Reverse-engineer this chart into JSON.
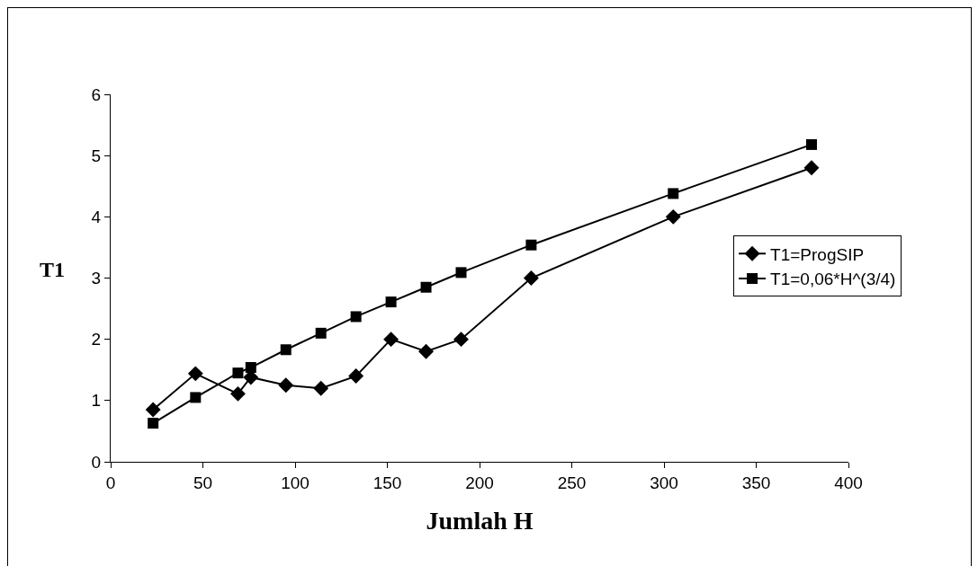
{
  "chart_data": {
    "type": "line",
    "xlabel": "Jumlah H",
    "ylabel": "T1",
    "x": [
      23,
      46,
      69,
      76,
      95,
      114,
      133,
      152,
      171,
      190,
      228,
      305,
      380
    ],
    "series": [
      {
        "name": "T1=ProgSIP",
        "color": "#000000",
        "marker": "diamond",
        "values": [
          0.85,
          1.44,
          1.11,
          1.38,
          1.25,
          1.2,
          1.4,
          2.0,
          1.8,
          2.0,
          3.0,
          4.0,
          4.8
        ]
      },
      {
        "name": "T1=0,06*H^(3/4)",
        "color": "#000000",
        "marker": "square",
        "values": [
          0.63,
          1.05,
          1.45,
          1.54,
          1.83,
          2.1,
          2.37,
          2.61,
          2.85,
          3.09,
          3.54,
          4.38,
          5.18
        ]
      }
    ],
    "xlim": [
      0,
      400
    ],
    "xticks": [
      0,
      50,
      100,
      150,
      200,
      250,
      300,
      350,
      400
    ],
    "ylim": [
      0,
      6
    ],
    "yticks": [
      0,
      1,
      2,
      3,
      4,
      5,
      6
    ],
    "grid": false,
    "legend": "right",
    "line_style": "solid"
  }
}
